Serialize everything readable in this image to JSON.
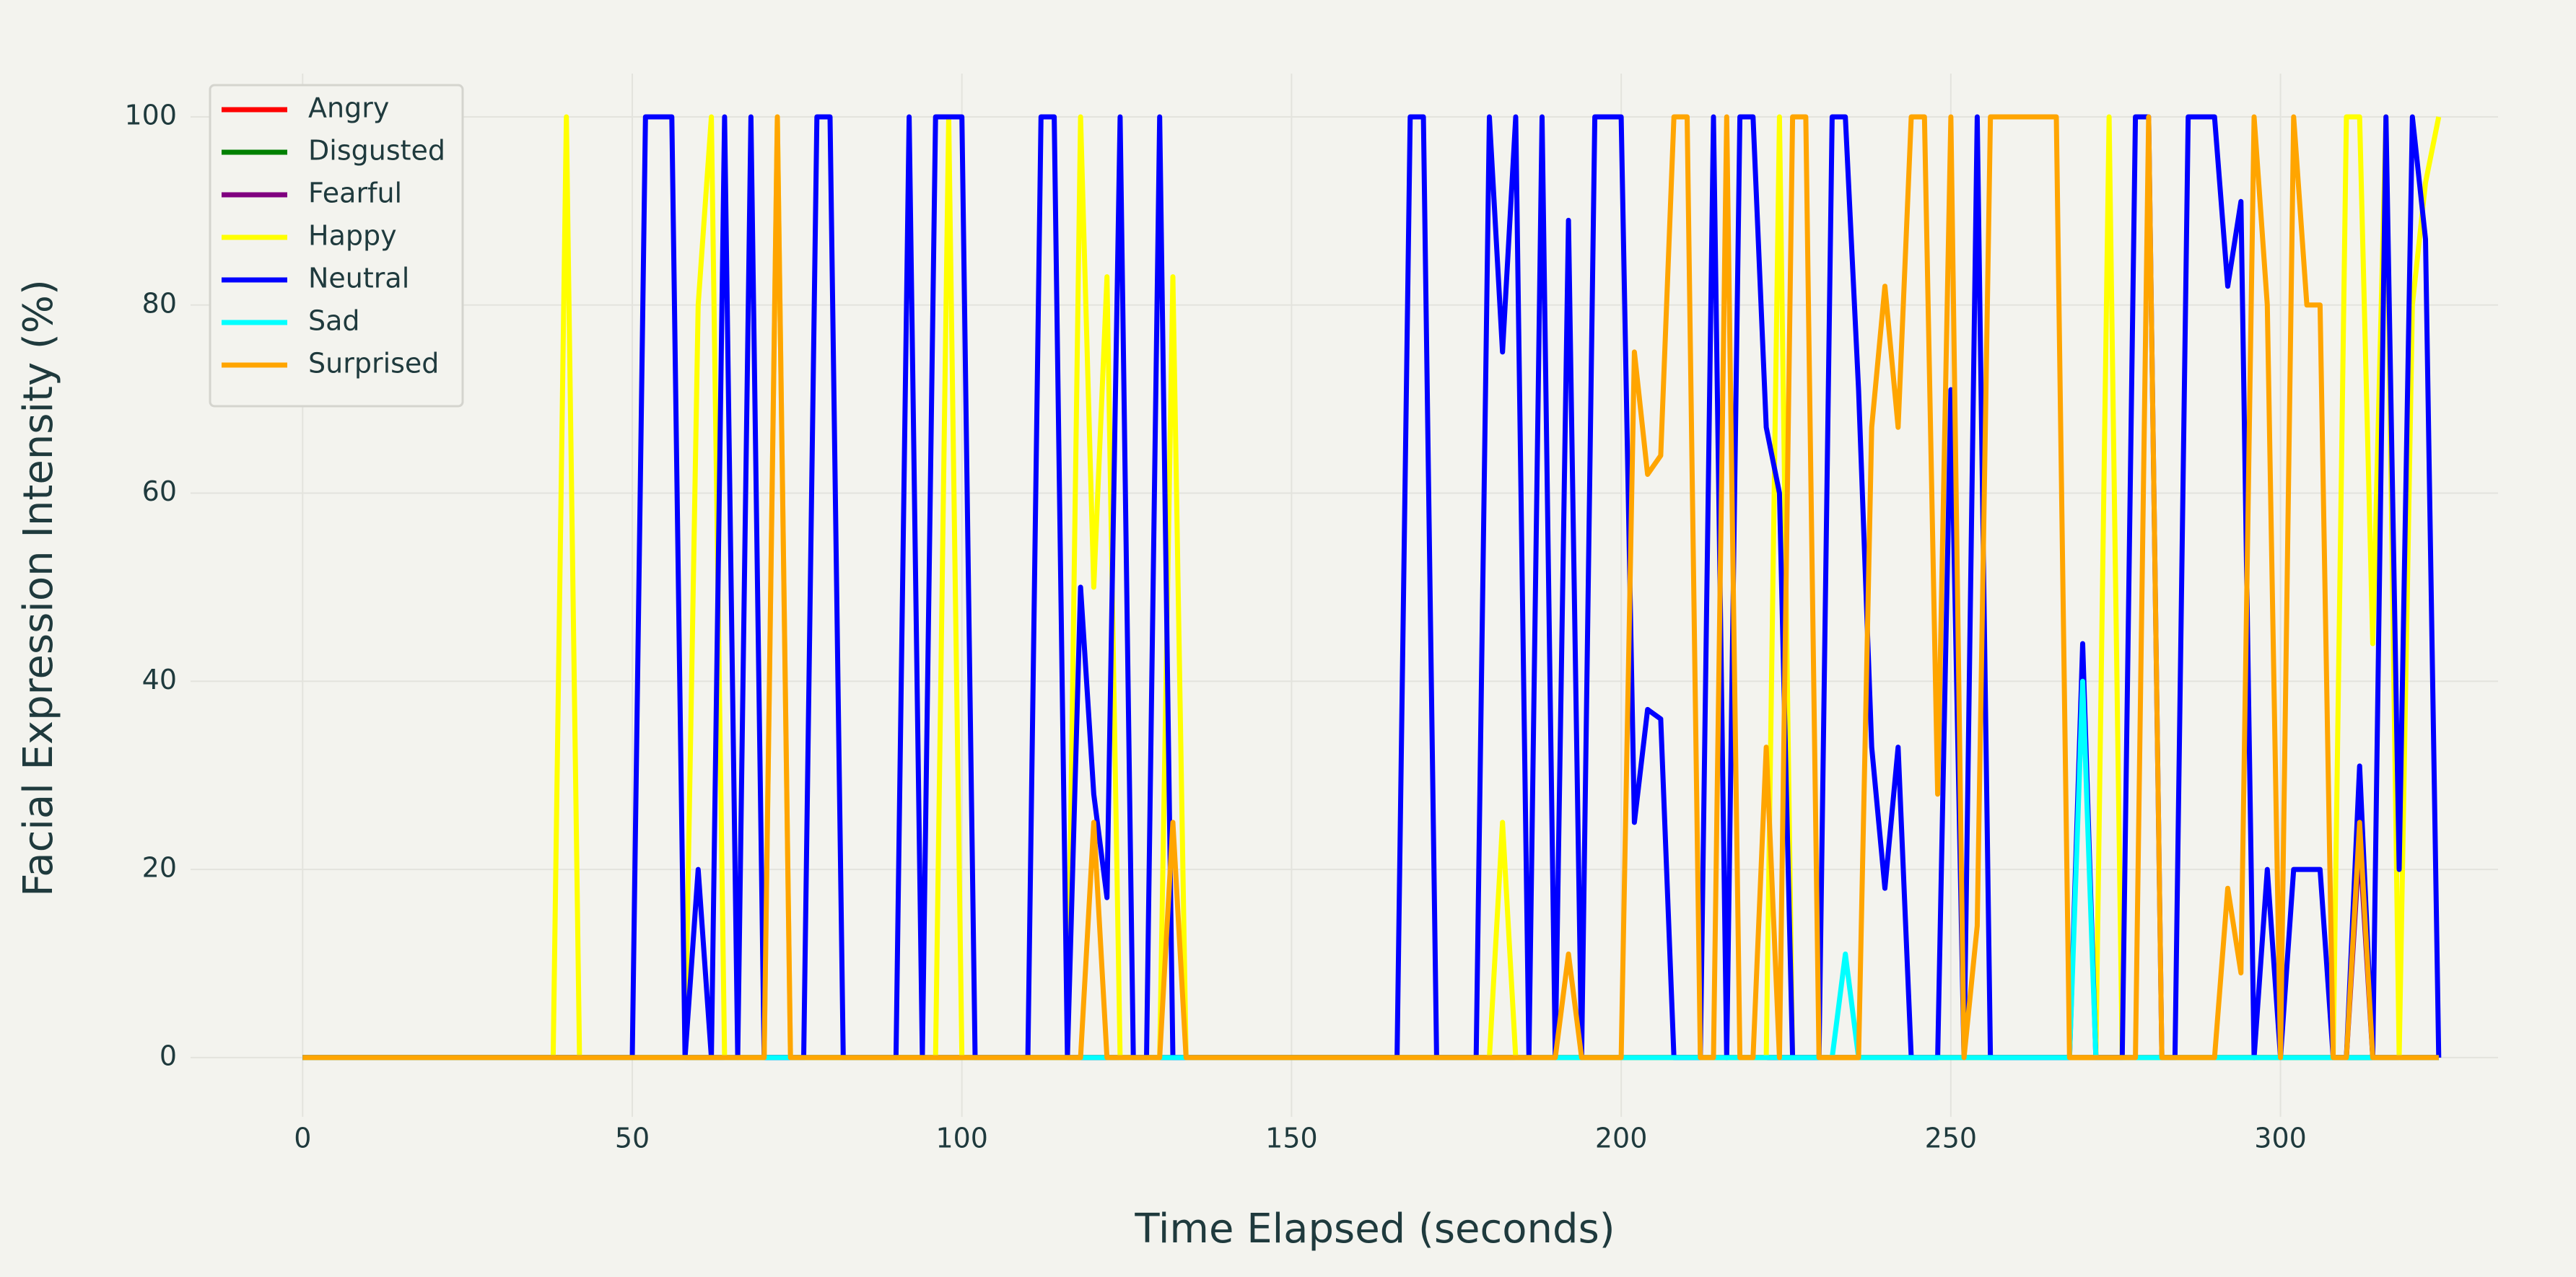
{
  "chart_data": {
    "type": "line",
    "xlabel": "Time Elapsed (seconds)",
    "ylabel": "Facial Expression Intensity (%)",
    "xlim": [
      -17,
      333
    ],
    "ylim": [
      -6.3,
      104.6
    ],
    "xticks": [
      0,
      50,
      100,
      150,
      200,
      250,
      300
    ],
    "yticks": [
      0,
      20,
      40,
      60,
      80,
      100
    ],
    "grid": true,
    "legend": "upper left",
    "x": [
      0,
      2,
      4,
      6,
      8,
      10,
      12,
      14,
      16,
      18,
      20,
      22,
      24,
      26,
      28,
      30,
      32,
      34,
      36,
      38,
      40,
      42,
      44,
      46,
      48,
      50,
      52,
      54,
      56,
      58,
      60,
      62,
      64,
      66,
      68,
      70,
      72,
      74,
      76,
      78,
      80,
      82,
      84,
      86,
      88,
      90,
      92,
      94,
      96,
      98,
      100,
      102,
      104,
      106,
      108,
      110,
      112,
      114,
      116,
      118,
      120,
      122,
      124,
      126,
      128,
      130,
      132,
      134,
      136,
      138,
      140,
      142,
      144,
      146,
      148,
      150,
      152,
      154,
      156,
      158,
      160,
      162,
      164,
      166,
      168,
      170,
      172,
      174,
      176,
      178,
      180,
      182,
      184,
      186,
      188,
      190,
      192,
      194,
      196,
      198,
      200,
      202,
      204,
      206,
      208,
      210,
      212,
      214,
      216,
      218,
      220,
      222,
      224,
      226,
      228,
      230,
      232,
      234,
      236,
      238,
      240,
      242,
      244,
      246,
      248,
      250,
      252,
      254,
      256,
      258,
      260,
      262,
      264,
      266,
      268,
      270,
      272,
      274,
      276,
      278,
      280,
      282,
      284,
      286,
      288,
      290,
      292,
      294,
      296,
      298,
      300,
      302,
      304,
      306,
      308,
      310,
      312,
      314,
      316,
      318,
      320,
      322,
      324
    ],
    "series": [
      {
        "name": "Angry",
        "color": "#ff0000",
        "values": [
          0,
          0,
          0,
          0,
          0,
          0,
          0,
          0,
          0,
          0,
          0,
          0,
          0,
          0,
          0,
          0,
          0,
          0,
          0,
          0,
          0,
          0,
          0,
          0,
          0,
          0,
          0,
          0,
          0,
          0,
          0,
          0,
          0,
          0,
          0,
          0,
          0,
          0,
          0,
          0,
          0,
          0,
          0,
          0,
          0,
          0,
          0,
          0,
          0,
          0,
          0,
          0,
          0,
          0,
          0,
          0,
          0,
          0,
          0,
          0,
          0,
          0,
          0,
          0,
          0,
          0,
          0,
          0,
          0,
          0,
          0,
          0,
          0,
          0,
          0,
          0,
          0,
          0,
          0,
          0,
          0,
          0,
          0,
          0,
          0,
          0,
          0,
          0,
          0,
          0,
          0,
          0,
          0,
          0,
          0,
          0,
          0,
          0,
          0,
          0,
          0,
          0,
          0,
          0,
          0,
          0,
          0,
          0,
          0,
          0,
          0,
          0,
          0,
          0,
          0,
          0,
          0,
          0,
          0,
          0,
          0,
          0,
          0,
          0,
          0,
          0,
          0,
          0,
          0,
          0,
          0,
          0,
          0,
          0,
          0,
          0,
          0,
          0,
          0,
          0,
          0,
          0,
          0,
          0,
          0,
          0,
          0,
          0,
          0,
          0,
          0,
          0,
          0,
          0,
          0,
          0,
          0,
          0,
          0,
          0,
          0,
          0,
          0
        ]
      },
      {
        "name": "Disgusted",
        "color": "#008000",
        "values": [
          0,
          0,
          0,
          0,
          0,
          0,
          0,
          0,
          0,
          0,
          0,
          0,
          0,
          0,
          0,
          0,
          0,
          0,
          0,
          0,
          0,
          0,
          0,
          0,
          0,
          0,
          0,
          0,
          0,
          0,
          0,
          0,
          0,
          0,
          0,
          0,
          0,
          0,
          0,
          0,
          0,
          0,
          0,
          0,
          0,
          0,
          0,
          0,
          0,
          0,
          0,
          0,
          0,
          0,
          0,
          0,
          0,
          0,
          0,
          0,
          0,
          0,
          0,
          0,
          0,
          0,
          0,
          0,
          0,
          0,
          0,
          0,
          0,
          0,
          0,
          0,
          0,
          0,
          0,
          0,
          0,
          0,
          0,
          0,
          0,
          0,
          0,
          0,
          0,
          0,
          0,
          0,
          0,
          0,
          0,
          0,
          0,
          0,
          0,
          0,
          0,
          0,
          0,
          0,
          0,
          0,
          0,
          0,
          0,
          0,
          0,
          0,
          0,
          0,
          0,
          0,
          0,
          0,
          0,
          0,
          0,
          0,
          0,
          0,
          0,
          0,
          0,
          0,
          0,
          0,
          0,
          0,
          0,
          0,
          0,
          0,
          0,
          0,
          0,
          0,
          0,
          0,
          0,
          0,
          0,
          0,
          0,
          0,
          0,
          0,
          0,
          0,
          0,
          0,
          0,
          0,
          0,
          0,
          0,
          0,
          0,
          0,
          0
        ]
      },
      {
        "name": "Fearful",
        "color": "#800080",
        "values": [
          0,
          0,
          0,
          0,
          0,
          0,
          0,
          0,
          0,
          0,
          0,
          0,
          0,
          0,
          0,
          0,
          0,
          0,
          0,
          0,
          0,
          0,
          0,
          0,
          0,
          0,
          0,
          0,
          0,
          0,
          0,
          0,
          0,
          0,
          0,
          0,
          0,
          0,
          0,
          0,
          0,
          0,
          0,
          0,
          0,
          0,
          0,
          0,
          0,
          0,
          0,
          0,
          0,
          0,
          0,
          0,
          0,
          0,
          0,
          0,
          0,
          0,
          0,
          0,
          0,
          0,
          0,
          0,
          0,
          0,
          0,
          0,
          0,
          0,
          0,
          0,
          0,
          0,
          0,
          0,
          0,
          0,
          0,
          0,
          0,
          0,
          0,
          0,
          0,
          0,
          0,
          0,
          0,
          0,
          0,
          0,
          0,
          0,
          0,
          0,
          0,
          0,
          0,
          0,
          0,
          0,
          0,
          0,
          0,
          0,
          0,
          0,
          0,
          0,
          0,
          0,
          0,
          0,
          0,
          0,
          0,
          0,
          0,
          0,
          0,
          0,
          0,
          0,
          0,
          0,
          0,
          0,
          0,
          0,
          0,
          0,
          0,
          0,
          0,
          0,
          0,
          0,
          0,
          0,
          0,
          0,
          0,
          0,
          0,
          0,
          0,
          0,
          0,
          0,
          0,
          0,
          23,
          0,
          0,
          0,
          0,
          0,
          0
        ]
      },
      {
        "name": "Happy",
        "color": "#ffff00",
        "values": [
          0,
          0,
          0,
          0,
          0,
          0,
          0,
          0,
          0,
          0,
          0,
          0,
          0,
          0,
          0,
          0,
          0,
          0,
          0,
          0,
          100,
          0,
          0,
          0,
          0,
          0,
          0,
          0,
          0,
          0,
          80,
          100,
          0,
          0,
          0,
          0,
          100,
          0,
          0,
          0,
          0,
          0,
          0,
          0,
          0,
          0,
          0,
          0,
          0,
          100,
          0,
          0,
          0,
          0,
          0,
          0,
          0,
          0,
          0,
          100,
          50,
          83,
          0,
          0,
          0,
          0,
          83,
          0,
          0,
          0,
          0,
          0,
          0,
          0,
          0,
          0,
          0,
          0,
          0,
          0,
          0,
          0,
          0,
          0,
          0,
          0,
          0,
          0,
          0,
          0,
          0,
          25,
          0,
          0,
          0,
          0,
          0,
          0,
          0,
          0,
          0,
          0,
          0,
          0,
          0,
          0,
          0,
          0,
          0,
          0,
          0,
          0,
          100,
          0,
          0,
          0,
          0,
          0,
          0,
          0,
          0,
          0,
          0,
          0,
          0,
          0,
          0,
          0,
          0,
          0,
          0,
          0,
          0,
          0,
          0,
          0,
          0,
          100,
          0,
          0,
          0,
          0,
          0,
          0,
          0,
          0,
          0,
          0,
          0,
          0,
          0,
          0,
          0,
          0,
          0,
          100,
          100,
          44,
          100,
          0,
          80,
          93,
          100
        ]
      },
      {
        "name": "Neutral",
        "color": "#0000ff",
        "values": [
          0,
          0,
          0,
          0,
          0,
          0,
          0,
          0,
          0,
          0,
          0,
          0,
          0,
          0,
          0,
          0,
          0,
          0,
          0,
          0,
          0,
          0,
          0,
          0,
          0,
          0,
          100,
          100,
          100,
          0,
          20,
          0,
          100,
          0,
          100,
          0,
          0,
          0,
          0,
          100,
          100,
          0,
          0,
          0,
          0,
          0,
          100,
          0,
          100,
          100,
          100,
          0,
          0,
          0,
          0,
          0,
          100,
          100,
          0,
          50,
          28,
          17,
          100,
          0,
          0,
          100,
          0,
          0,
          0,
          0,
          0,
          0,
          0,
          0,
          0,
          0,
          0,
          0,
          0,
          0,
          0,
          0,
          0,
          0,
          100,
          100,
          0,
          0,
          0,
          0,
          100,
          75,
          100,
          0,
          100,
          0,
          89,
          0,
          100,
          100,
          100,
          25,
          37,
          36,
          0,
          0,
          0,
          100,
          0,
          100,
          100,
          67,
          60,
          0,
          0,
          0,
          100,
          100,
          71,
          33,
          18,
          33,
          0,
          0,
          0,
          71,
          0,
          100,
          0,
          0,
          0,
          0,
          0,
          0,
          0,
          44,
          0,
          0,
          0,
          100,
          100,
          0,
          0,
          100,
          100,
          100,
          82,
          91,
          0,
          20,
          0,
          20,
          20,
          20,
          0,
          0,
          31,
          0,
          100,
          20,
          100,
          87,
          0
        ]
      },
      {
        "name": "Sad",
        "color": "#00ffff",
        "values": [
          0,
          0,
          0,
          0,
          0,
          0,
          0,
          0,
          0,
          0,
          0,
          0,
          0,
          0,
          0,
          0,
          0,
          0,
          0,
          0,
          0,
          0,
          0,
          0,
          0,
          0,
          0,
          0,
          0,
          0,
          0,
          0,
          0,
          0,
          0,
          0,
          0,
          0,
          0,
          0,
          0,
          0,
          0,
          0,
          0,
          0,
          0,
          0,
          0,
          0,
          0,
          0,
          0,
          0,
          0,
          0,
          0,
          0,
          0,
          0,
          0,
          0,
          0,
          0,
          0,
          0,
          0,
          0,
          0,
          0,
          0,
          0,
          0,
          0,
          0,
          0,
          0,
          0,
          0,
          0,
          0,
          0,
          0,
          0,
          0,
          0,
          0,
          0,
          0,
          0,
          0,
          0,
          0,
          0,
          0,
          0,
          0,
          0,
          0,
          0,
          0,
          0,
          0,
          0,
          0,
          0,
          0,
          0,
          0,
          0,
          0,
          0,
          0,
          0,
          0,
          0,
          0,
          11,
          0,
          0,
          0,
          0,
          0,
          0,
          0,
          0,
          0,
          0,
          0,
          0,
          0,
          0,
          0,
          0,
          0,
          40,
          0,
          0,
          0,
          0,
          0,
          0,
          0,
          0,
          0,
          0,
          0,
          0,
          0,
          0,
          0,
          0,
          0,
          0,
          0,
          0,
          0,
          0,
          0,
          0,
          0,
          0,
          0
        ]
      },
      {
        "name": "Surprised",
        "color": "#ffa500",
        "values": [
          0,
          0,
          0,
          0,
          0,
          0,
          0,
          0,
          0,
          0,
          0,
          0,
          0,
          0,
          0,
          0,
          0,
          0,
          0,
          0,
          0,
          0,
          0,
          0,
          0,
          0,
          0,
          0,
          0,
          0,
          0,
          0,
          0,
          0,
          0,
          0,
          100,
          0,
          0,
          0,
          0,
          0,
          0,
          0,
          0,
          0,
          0,
          0,
          0,
          0,
          0,
          0,
          0,
          0,
          0,
          0,
          0,
          0,
          0,
          0,
          25,
          0,
          0,
          0,
          0,
          0,
          25,
          0,
          0,
          0,
          0,
          0,
          0,
          0,
          0,
          0,
          0,
          0,
          0,
          0,
          0,
          0,
          0,
          0,
          0,
          0,
          0,
          0,
          0,
          0,
          0,
          0,
          0,
          0,
          0,
          0,
          11,
          0,
          0,
          0,
          0,
          75,
          62,
          64,
          100,
          100,
          0,
          0,
          100,
          0,
          0,
          33,
          0,
          100,
          100,
          0,
          0,
          0,
          0,
          67,
          82,
          67,
          100,
          100,
          28,
          100,
          0,
          14,
          100,
          100,
          100,
          100,
          100,
          100,
          0,
          0,
          0,
          0,
          0,
          0,
          100,
          0,
          0,
          0,
          0,
          0,
          18,
          9,
          100,
          80,
          0,
          100,
          80,
          80,
          0,
          0,
          25,
          0,
          0,
          0,
          0,
          0,
          0
        ]
      }
    ]
  }
}
